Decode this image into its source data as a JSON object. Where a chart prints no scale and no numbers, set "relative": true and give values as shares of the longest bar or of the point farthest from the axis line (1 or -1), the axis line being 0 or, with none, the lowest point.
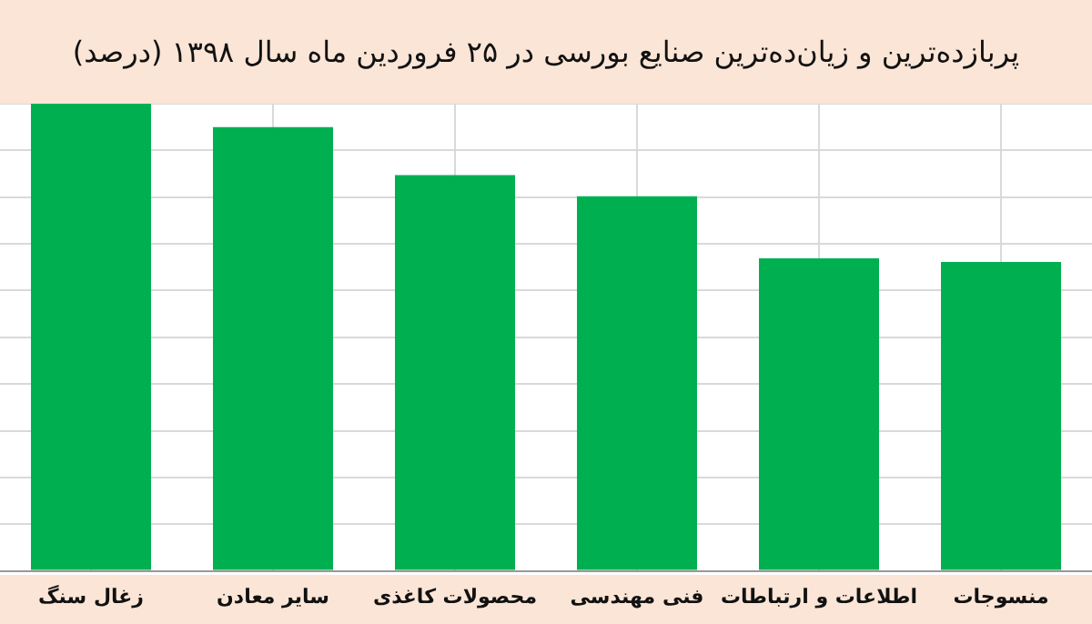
{
  "chart_data": {
    "type": "bar",
    "title": "پربازده‌ترین و زیان‌ده‌ترین صنایع بورسی در ۲۵ فروردین ماه سال ۱۳۹۸ (درصد)",
    "categories": [
      "زغال سنگ",
      "سایر معادن",
      "محصولات کاغذی",
      "فنی مهندسی",
      "اطلاعات و ارتباطات",
      "منسوجات"
    ],
    "values": [
      1,
      0.95,
      0.847,
      0.802,
      0.669,
      0.661
    ],
    "color": "#00b050",
    "relative": true,
    "grid": true
  }
}
